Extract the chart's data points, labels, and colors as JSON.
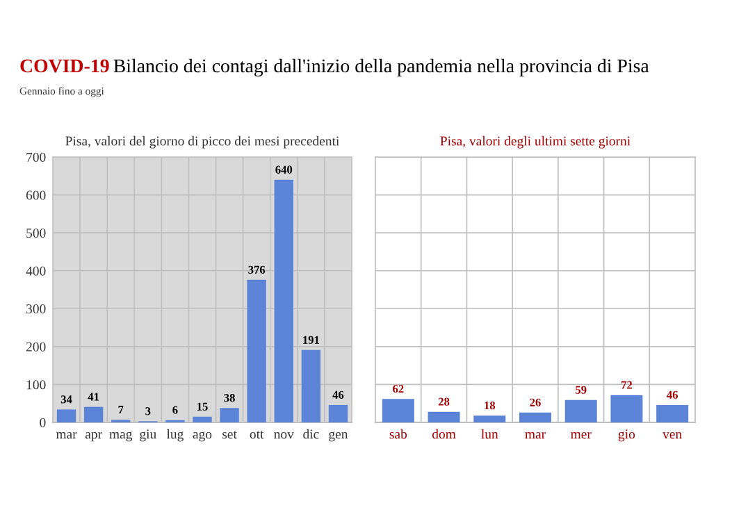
{
  "chart_data": [
    {
      "type": "other",
      "title": "COVID-19 Bilancio dei contagi dall'inizio della pandemia nella provincia di Pisa",
      "subtitle": "Gennaio fino a oggi"
    },
    {
      "type": "bar",
      "title": "Pisa, valori del giorno di picco dei mesi precedenti",
      "categories": [
        "mar",
        "apr",
        "mag",
        "giu",
        "lug",
        "ago",
        "set",
        "ott",
        "nov",
        "dic",
        "gen"
      ],
      "values": [
        34,
        41,
        7,
        3,
        6,
        15,
        38,
        376,
        640,
        191,
        46
      ],
      "color": "#5b84d6",
      "ylim": [
        0,
        700
      ],
      "yticks": [
        0,
        100,
        200,
        300,
        400,
        500,
        600,
        700
      ],
      "grid": true,
      "data_labels": true
    },
    {
      "type": "bar",
      "title": "Pisa, valori degli ultimi sette giorni",
      "categories": [
        "sab",
        "dom",
        "lun",
        "mar",
        "mer",
        "gio",
        "ven"
      ],
      "values": [
        62,
        28,
        18,
        26,
        59,
        72,
        46
      ],
      "color": "#5b84d6",
      "ylim": [
        0,
        700
      ],
      "yticks": [
        0,
        100,
        200,
        300,
        400,
        500,
        600,
        700
      ],
      "grid": true,
      "data_labels": true,
      "tick_labels": "x"
    }
  ]
}
